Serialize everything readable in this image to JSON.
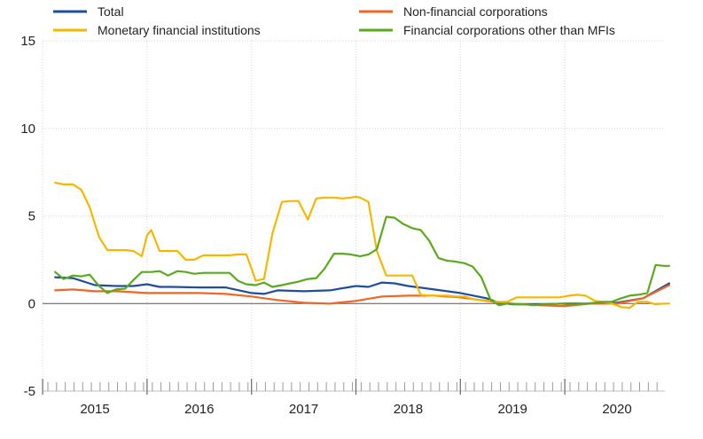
{
  "chart_data": {
    "type": "line",
    "title": "",
    "xlabel": "",
    "ylabel": "",
    "ylim": [
      -5,
      15
    ],
    "xlim": [
      2014.6,
      2020.52
    ],
    "y_ticks": [
      -5,
      0,
      5,
      10,
      15
    ],
    "y_tick_labels": [
      "-5",
      "0",
      "5",
      "10",
      "15"
    ],
    "x_tick_labels": [
      "2015",
      "2016",
      "2017",
      "2018",
      "2019",
      "2020"
    ],
    "legend": [
      {
        "name": "Total",
        "color": "#1f4e9c"
      },
      {
        "name": "Non-financial corporations",
        "color": "#f26522"
      },
      {
        "name": "Monetary financial institutions",
        "color": "#f5b800"
      },
      {
        "name": "Financial corporations other than MFIs",
        "color": "#5aaa1e"
      }
    ],
    "series": [
      {
        "name": "Total",
        "color": "#1f4e9c",
        "x": [
          2014.62,
          2014.79,
          2015.0,
          2015.21,
          2015.37,
          2015.5,
          2015.62,
          2015.75,
          2016.0,
          2016.25,
          2016.5,
          2016.62,
          2016.75,
          2017.0,
          2017.25,
          2017.5,
          2017.62,
          2017.75,
          2017.87,
          2018.0,
          2018.25,
          2018.5,
          2018.75,
          2018.87,
          2019.0,
          2019.25,
          2019.5,
          2019.75,
          2020.0,
          2020.25,
          2020.5
        ],
        "y": [
          1.5,
          1.45,
          1.05,
          1.0,
          1.0,
          1.1,
          0.95,
          0.95,
          0.92,
          0.92,
          0.6,
          0.55,
          0.75,
          0.7,
          0.75,
          1.0,
          0.95,
          1.2,
          1.15,
          1.0,
          0.8,
          0.6,
          0.3,
          0.05,
          -0.05,
          -0.05,
          0.0,
          0.0,
          0.05,
          0.3,
          1.15
        ]
      },
      {
        "name": "Non-financial corporations",
        "color": "#f26522",
        "x": [
          2014.62,
          2014.79,
          2015.0,
          2015.21,
          2015.5,
          2015.75,
          2016.0,
          2016.25,
          2016.5,
          2016.62,
          2016.75,
          2017.0,
          2017.25,
          2017.5,
          2017.75,
          2018.0,
          2018.25,
          2018.5,
          2018.75,
          2019.0,
          2019.25,
          2019.5,
          2019.75,
          2020.0,
          2020.25,
          2020.5
        ],
        "y": [
          0.75,
          0.8,
          0.7,
          0.7,
          0.6,
          0.6,
          0.6,
          0.55,
          0.4,
          0.3,
          0.2,
          0.05,
          0.0,
          0.15,
          0.4,
          0.45,
          0.45,
          0.35,
          0.15,
          0.0,
          -0.1,
          -0.15,
          0.0,
          0.0,
          0.3,
          1.05
        ]
      },
      {
        "name": "Monetary financial institutions",
        "color": "#f5b800",
        "x": [
          2014.62,
          2014.7,
          2014.79,
          2014.87,
          2014.95,
          2015.04,
          2015.12,
          2015.2,
          2015.29,
          2015.37,
          2015.45,
          2015.5,
          2015.54,
          2015.62,
          2015.7,
          2015.79,
          2015.87,
          2015.95,
          2016.04,
          2016.12,
          2016.2,
          2016.29,
          2016.37,
          2016.45,
          2016.5,
          2016.54,
          2016.62,
          2016.7,
          2016.79,
          2016.87,
          2016.95,
          2017.04,
          2017.12,
          2017.2,
          2017.29,
          2017.37,
          2017.45,
          2017.5,
          2017.54,
          2017.62,
          2017.7,
          2017.79,
          2017.87,
          2017.95,
          2018.04,
          2018.12,
          2018.2,
          2018.29,
          2018.37,
          2018.45,
          2018.54,
          2018.62,
          2018.7,
          2018.79,
          2018.87,
          2018.95,
          2019.04,
          2019.12,
          2019.2,
          2019.29,
          2019.37,
          2019.45,
          2019.54,
          2019.62,
          2019.7,
          2019.79,
          2019.87,
          2019.95,
          2020.04,
          2020.12,
          2020.2,
          2020.29,
          2020.37,
          2020.45,
          2020.5
        ],
        "y": [
          6.9,
          6.8,
          6.8,
          6.5,
          5.5,
          3.8,
          3.05,
          3.05,
          3.05,
          3.0,
          2.7,
          3.9,
          4.2,
          3.0,
          3.0,
          3.0,
          2.5,
          2.5,
          2.75,
          2.75,
          2.75,
          2.75,
          2.8,
          2.8,
          2.0,
          1.3,
          1.4,
          4.0,
          5.8,
          5.85,
          5.85,
          4.8,
          6.0,
          6.05,
          6.05,
          6.0,
          6.05,
          6.1,
          6.05,
          5.8,
          3.0,
          1.6,
          1.6,
          1.6,
          1.6,
          0.5,
          0.45,
          0.45,
          0.45,
          0.4,
          0.4,
          0.25,
          0.2,
          0.15,
          0.1,
          0.1,
          0.35,
          0.35,
          0.35,
          0.35,
          0.35,
          0.35,
          0.45,
          0.5,
          0.45,
          0.15,
          0.1,
          0.0,
          -0.2,
          -0.25,
          0.1,
          0.1,
          -0.05,
          0.0,
          0.0
        ]
      },
      {
        "name": "Financial corporations other than MFIs",
        "color": "#5aaa1e",
        "x": [
          2014.62,
          2014.7,
          2014.79,
          2014.87,
          2014.95,
          2015.04,
          2015.12,
          2015.2,
          2015.29,
          2015.37,
          2015.45,
          2015.54,
          2015.62,
          2015.7,
          2015.79,
          2015.87,
          2015.95,
          2016.04,
          2016.12,
          2016.2,
          2016.29,
          2016.37,
          2016.45,
          2016.54,
          2016.62,
          2016.7,
          2016.79,
          2016.87,
          2016.95,
          2017.04,
          2017.12,
          2017.2,
          2017.29,
          2017.37,
          2017.45,
          2017.54,
          2017.62,
          2017.7,
          2017.79,
          2017.87,
          2017.95,
          2018.04,
          2018.12,
          2018.2,
          2018.29,
          2018.37,
          2018.45,
          2018.54,
          2018.62,
          2018.7,
          2018.79,
          2018.87,
          2018.95,
          2019.04,
          2019.12,
          2019.2,
          2019.29,
          2019.37,
          2019.45,
          2019.54,
          2019.62,
          2019.7,
          2019.79,
          2019.87,
          2019.95,
          2020.04,
          2020.12,
          2020.2,
          2020.29,
          2020.37,
          2020.45,
          2020.5
        ],
        "y": [
          1.8,
          1.4,
          1.6,
          1.55,
          1.65,
          1.0,
          0.6,
          0.8,
          0.85,
          1.35,
          1.8,
          1.8,
          1.85,
          1.6,
          1.85,
          1.8,
          1.7,
          1.75,
          1.75,
          1.75,
          1.75,
          1.3,
          1.1,
          1.05,
          1.2,
          0.95,
          1.05,
          1.15,
          1.25,
          1.4,
          1.45,
          2.0,
          2.85,
          2.85,
          2.8,
          2.7,
          2.8,
          3.1,
          4.95,
          4.9,
          4.55,
          4.3,
          4.2,
          3.6,
          2.6,
          2.45,
          2.4,
          2.3,
          2.1,
          1.5,
          0.2,
          -0.1,
          0.0,
          -0.05,
          -0.05,
          -0.1,
          -0.05,
          -0.05,
          0.0,
          -0.05,
          -0.05,
          0.0,
          0.05,
          0.1,
          0.1,
          0.3,
          0.45,
          0.5,
          0.6,
          2.2,
          2.15,
          2.15
        ]
      }
    ]
  }
}
